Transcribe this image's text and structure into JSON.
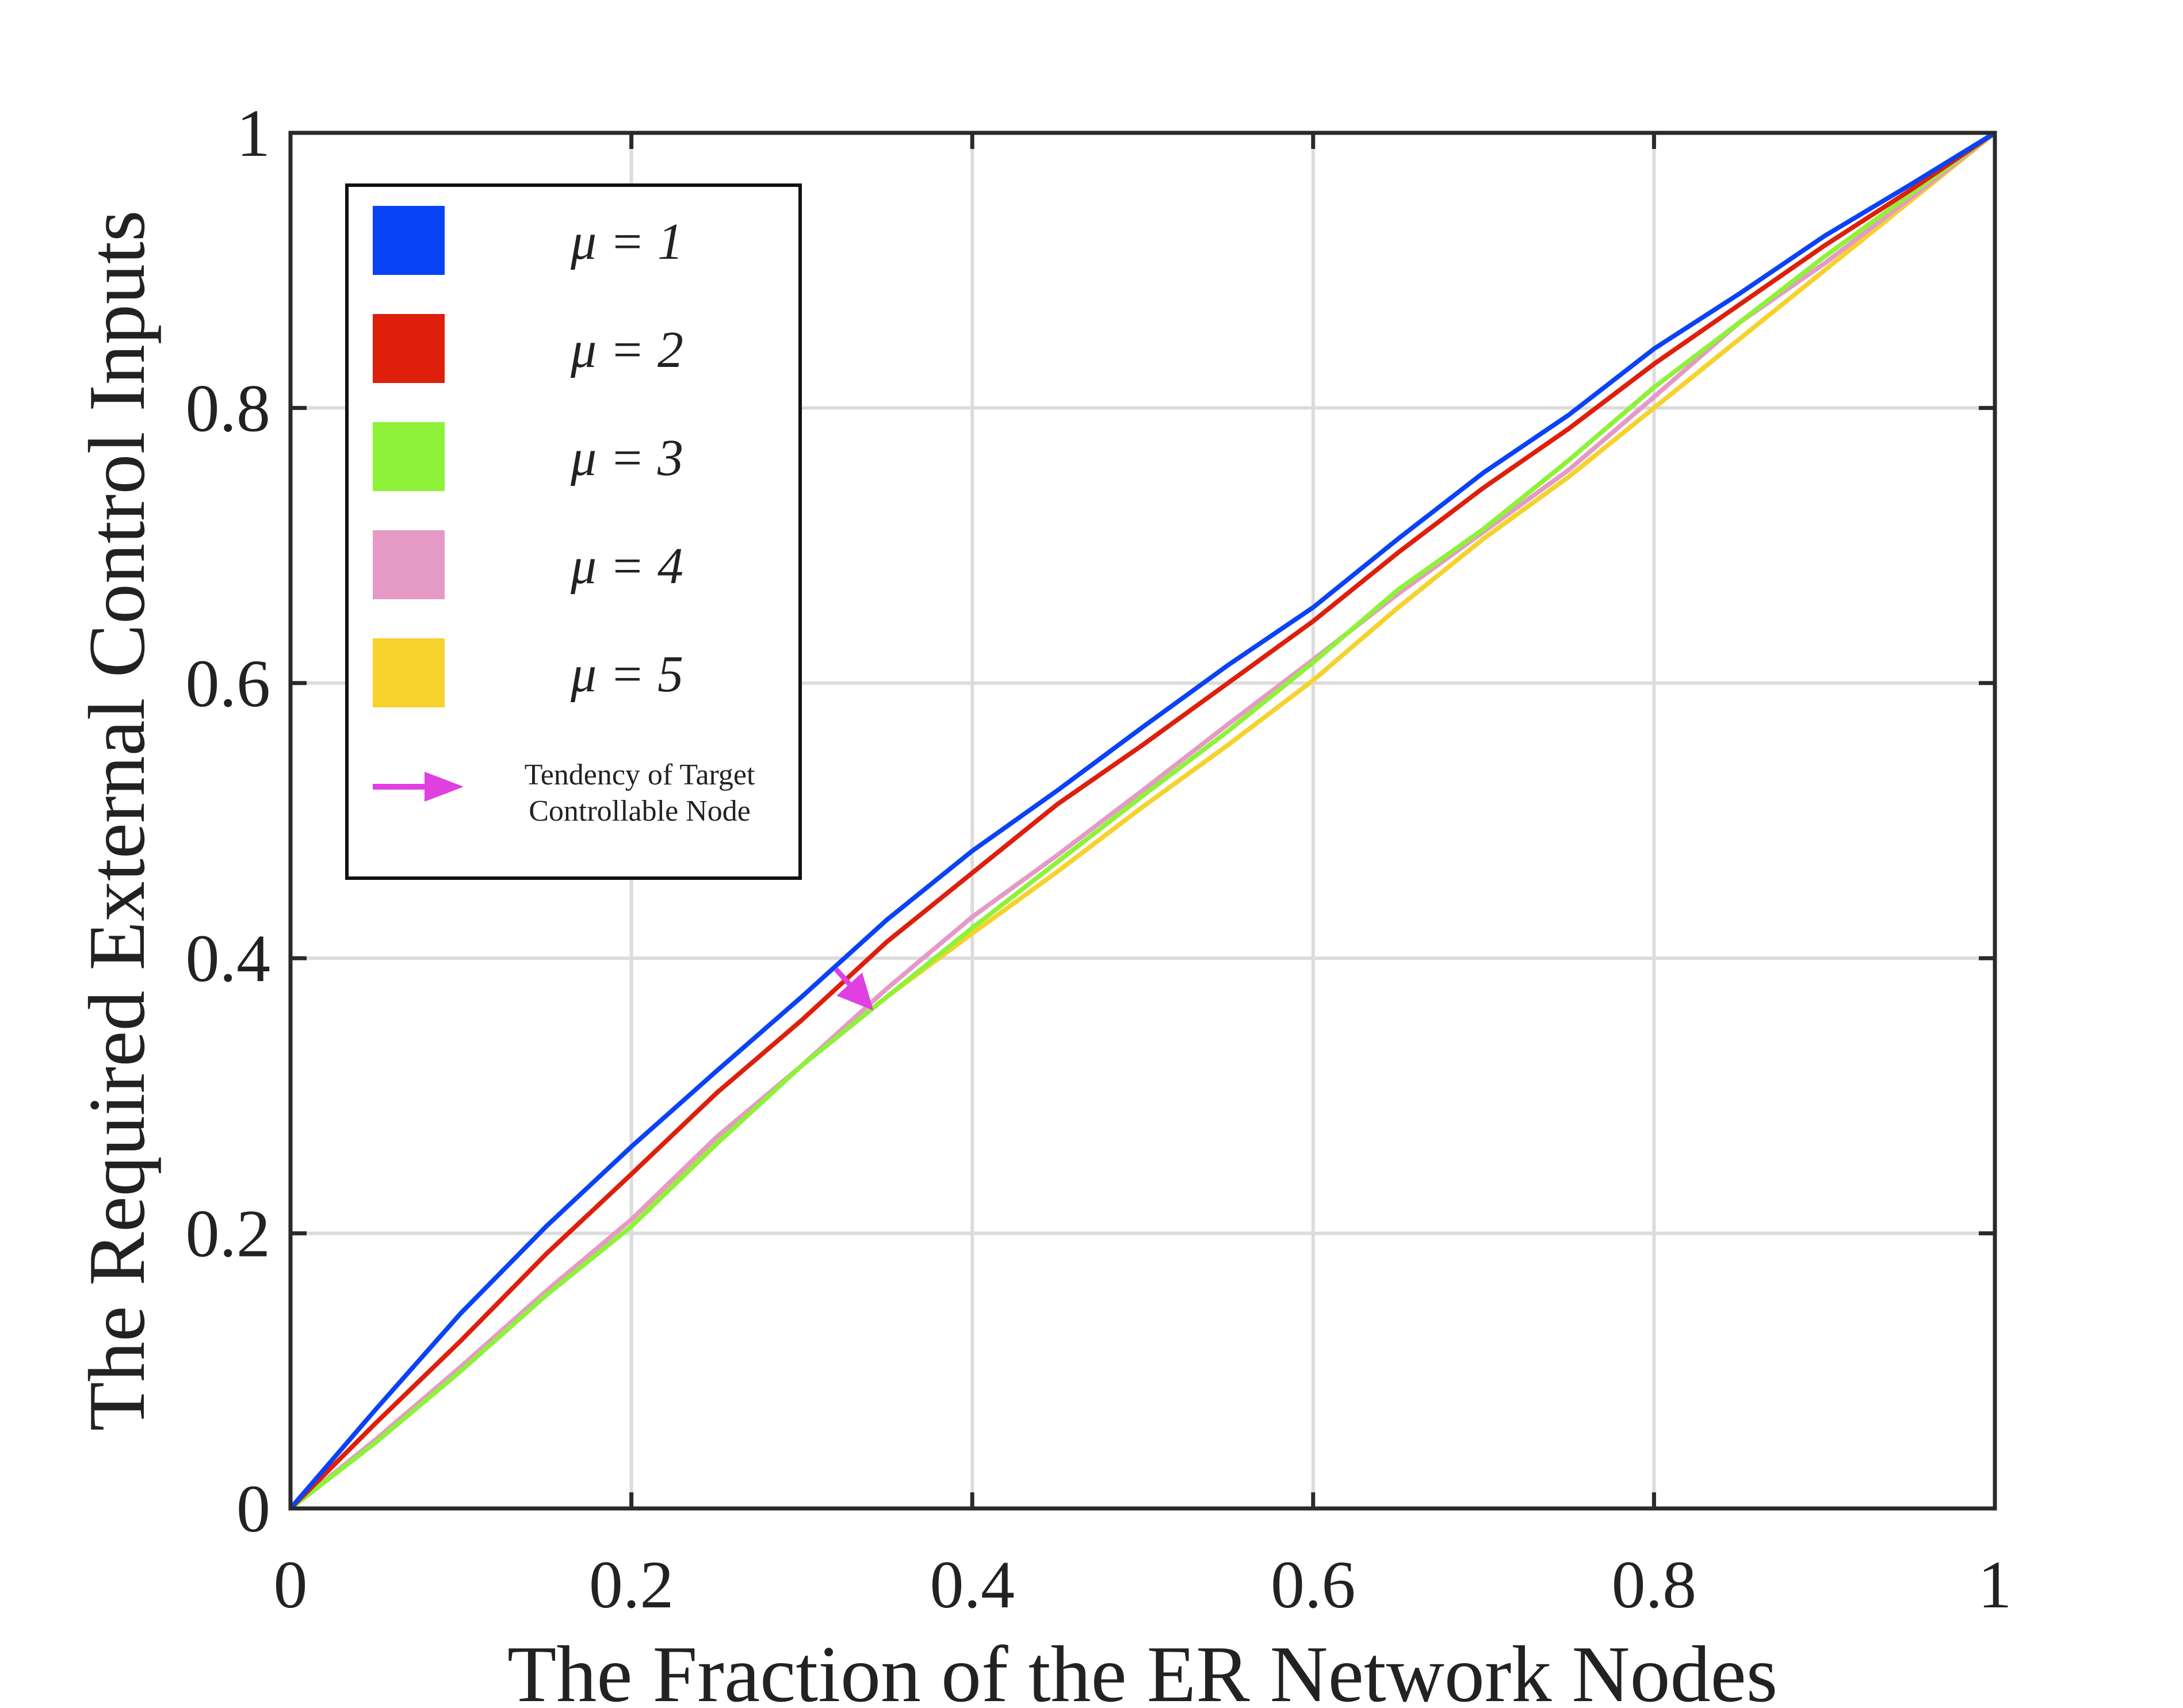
{
  "chart_data": {
    "type": "line",
    "title": "",
    "xlabel": "The Fraction of the ER Network Nodes",
    "ylabel": "The Required External Control Inputs",
    "xlim": [
      0,
      1
    ],
    "ylim": [
      0,
      1
    ],
    "xticks": [
      0,
      0.2,
      0.4,
      0.6,
      0.8,
      1
    ],
    "yticks": [
      0,
      0.2,
      0.4,
      0.6,
      0.8,
      1
    ],
    "xtick_labels": [
      "0",
      "0.2",
      "0.4",
      "0.6",
      "0.8",
      "1"
    ],
    "ytick_labels": [
      "0",
      "0.2",
      "0.4",
      "0.6",
      "0.8",
      "1"
    ],
    "grid": true,
    "legend_position": "top-left",
    "x": [
      0,
      0.05,
      0.1,
      0.15,
      0.2,
      0.25,
      0.3,
      0.35,
      0.4,
      0.45,
      0.5,
      0.55,
      0.6,
      0.65,
      0.7,
      0.75,
      0.8,
      0.85,
      0.9,
      0.95,
      1
    ],
    "series": [
      {
        "name": "μ = 1",
        "color": "#0a43f5",
        "values": [
          0,
          0.072,
          0.142,
          0.205,
          0.263,
          0.318,
          0.372,
          0.428,
          0.478,
          0.522,
          0.568,
          0.613,
          0.655,
          0.705,
          0.753,
          0.795,
          0.843,
          0.883,
          0.925,
          0.962,
          1
        ]
      },
      {
        "name": "μ = 2",
        "color": "#dd1f0b",
        "values": [
          0,
          0.062,
          0.122,
          0.185,
          0.243,
          0.302,
          0.355,
          0.412,
          0.462,
          0.512,
          0.555,
          0.6,
          0.645,
          0.695,
          0.742,
          0.785,
          0.832,
          0.875,
          0.918,
          0.958,
          1
        ]
      },
      {
        "name": "μ = 3",
        "color": "#8ef238",
        "values": [
          0,
          0.048,
          0.1,
          0.155,
          0.205,
          0.265,
          0.322,
          0.372,
          0.422,
          0.47,
          0.518,
          0.565,
          0.615,
          0.668,
          0.712,
          0.762,
          0.815,
          0.862,
          0.91,
          0.955,
          1
        ]
      },
      {
        "name": "μ = 4",
        "color": "#e59ac6",
        "values": [
          0,
          0.05,
          0.103,
          0.158,
          0.21,
          0.27,
          0.322,
          0.378,
          0.43,
          0.475,
          0.522,
          0.57,
          0.617,
          0.665,
          0.71,
          0.755,
          0.808,
          0.862,
          0.905,
          0.952,
          1
        ]
      },
      {
        "name": "μ = 5",
        "color": "#f5d22c",
        "values": [
          0,
          0.05,
          0.103,
          0.158,
          0.21,
          0.268,
          0.322,
          0.372,
          0.418,
          0.463,
          0.51,
          0.555,
          0.602,
          0.655,
          0.705,
          0.75,
          0.8,
          0.85,
          0.9,
          0.95,
          1
        ]
      }
    ],
    "annotation": {
      "type": "arrow",
      "label": "Tendency of  Target Controllable Node",
      "label_lines": [
        "Tendency of  Target",
        "Controllable Node"
      ],
      "color": "#e040e0",
      "from": [
        0.32,
        0.392
      ],
      "to": [
        0.342,
        0.362
      ]
    }
  }
}
